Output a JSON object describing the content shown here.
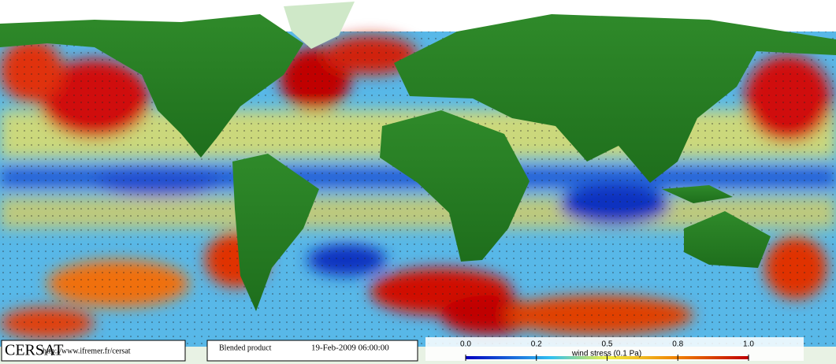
{
  "logo": "CERSAT",
  "url": "http://www.ifremer.fr/cersat",
  "product": "Blended product",
  "timestamp": "19-Feb-2009 06:00:00",
  "colorbar": {
    "title": "wind stress (0.1 Pa)",
    "ticks": [
      {
        "value": 0,
        "label": "0.0"
      },
      0.2,
      0.5,
      0.8,
      {
        "value": 1,
        "label": "1.0"
      }
    ]
  }
}
